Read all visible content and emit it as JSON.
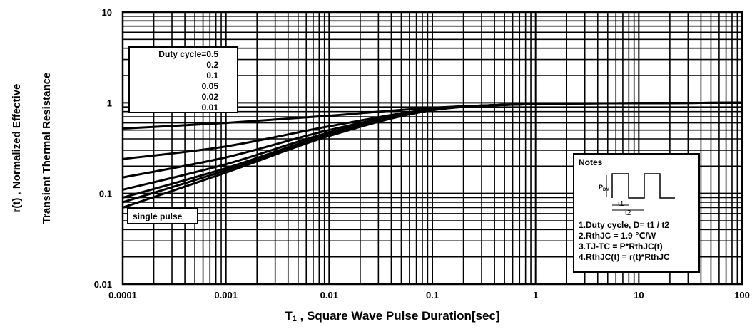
{
  "chart_data": {
    "type": "line",
    "xlabel_prefix": "T",
    "xlabel_sub": "1",
    "xlabel_rest": " , Square Wave Pulse Duration[sec]",
    "ylabel_line1": "r(t) , Normalized Effective",
    "ylabel_line2": "Transient Thermal Resistance",
    "x_scale": "log",
    "y_scale": "log",
    "xlim": [
      0.0001,
      100
    ],
    "ylim": [
      0.01,
      10
    ],
    "grid": true,
    "x_ticks": [
      "0.0001",
      "0.001",
      "0.01",
      "0.1",
      "1",
      "10",
      "100"
    ],
    "y_ticks": [
      "10",
      "1",
      "0.1",
      "0.01"
    ],
    "legend_title": "Duty cycle=0.5",
    "legend_labels": [
      "0.2",
      "0.1",
      "0.05",
      "0.02",
      "0.01"
    ],
    "single_pulse_label": "single pulse",
    "series": [
      {
        "name": "Duty cycle=0.5",
        "x": [
          0.0001,
          0.001,
          0.01,
          0.1,
          1,
          10,
          100
        ],
        "y": [
          0.52,
          0.6,
          0.72,
          0.88,
          0.97,
          0.99,
          1.0
        ]
      },
      {
        "name": "0.2",
        "x": [
          0.0001,
          0.001,
          0.01,
          0.1,
          1,
          10,
          100
        ],
        "y": [
          0.24,
          0.33,
          0.55,
          0.85,
          0.97,
          0.99,
          1.0
        ]
      },
      {
        "name": "0.1",
        "x": [
          0.0001,
          0.001,
          0.01,
          0.1,
          1,
          10,
          100
        ],
        "y": [
          0.15,
          0.25,
          0.5,
          0.84,
          0.97,
          0.99,
          1.0
        ]
      },
      {
        "name": "0.05",
        "x": [
          0.0001,
          0.001,
          0.01,
          0.1,
          1,
          10,
          100
        ],
        "y": [
          0.11,
          0.21,
          0.47,
          0.83,
          0.97,
          0.99,
          1.0
        ]
      },
      {
        "name": "0.02",
        "x": [
          0.0001,
          0.001,
          0.01,
          0.1,
          1,
          10,
          100
        ],
        "y": [
          0.09,
          0.19,
          0.45,
          0.83,
          0.97,
          0.99,
          1.0
        ]
      },
      {
        "name": "0.01",
        "x": [
          0.0001,
          0.001,
          0.01,
          0.1,
          1,
          10,
          100
        ],
        "y": [
          0.08,
          0.18,
          0.44,
          0.83,
          0.97,
          0.99,
          1.0
        ]
      },
      {
        "name": "single pulse",
        "x": [
          0.0001,
          0.001,
          0.01,
          0.1,
          1,
          10,
          100
        ],
        "y": [
          0.07,
          0.17,
          0.43,
          0.83,
          0.97,
          0.99,
          1.0
        ]
      }
    ],
    "notes": {
      "title": "Notes",
      "pdm_main": "P",
      "pdm_sub": "DM",
      "t1_label": "t1",
      "t2_label": "t2",
      "lines": [
        "1.Duty cycle, D= t1 / t2",
        "2.RthJC =  1.9 ℃/W",
        "3.TJ-TC = P*RthJC(t)",
        "4.RthJC(t) = r(t)*RthJC"
      ]
    }
  }
}
